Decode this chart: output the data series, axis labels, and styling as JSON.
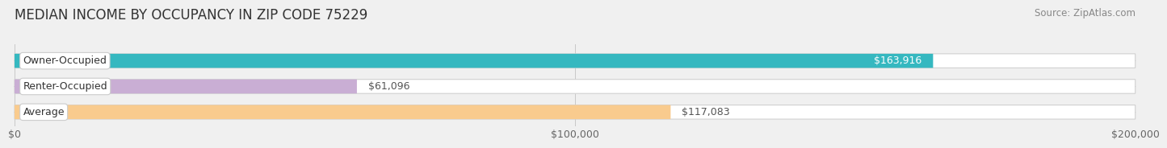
{
  "title": "MEDIAN INCOME BY OCCUPANCY IN ZIP CODE 75229",
  "source": "Source: ZipAtlas.com",
  "categories": [
    "Owner-Occupied",
    "Renter-Occupied",
    "Average"
  ],
  "values": [
    163916,
    61096,
    117083
  ],
  "labels": [
    "$163,916",
    "$61,096",
    "$117,083"
  ],
  "bar_colors": [
    "#35b8c0",
    "#c9aed4",
    "#f9cb8e"
  ],
  "xlim": [
    0,
    200000
  ],
  "xticks": [
    0,
    100000,
    200000
  ],
  "xticklabels": [
    "$0",
    "$100,000",
    "$200,000"
  ],
  "background_color": "#f0f0f0",
  "title_fontsize": 12,
  "source_fontsize": 8.5,
  "label_fontsize": 9,
  "tick_fontsize": 9,
  "cat_fontsize": 9,
  "value_label_color_inside": [
    "white",
    "#555555",
    "#555555"
  ],
  "value_label_inside": [
    true,
    false,
    false
  ]
}
